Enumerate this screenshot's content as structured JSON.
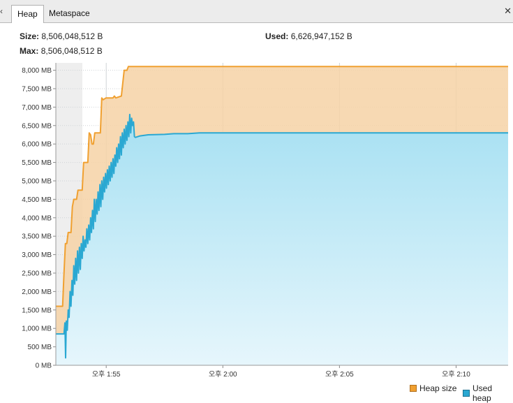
{
  "tabs": [
    {
      "label": "Heap",
      "active": true
    },
    {
      "label": "Metaspace",
      "active": false
    }
  ],
  "info": {
    "size_label": "Size:",
    "size_value": "8,506,048,512 B",
    "max_label": "Max:",
    "max_value": "8,506,048,512 B",
    "used_label": "Used:",
    "used_value": "6,626,947,152 B"
  },
  "colors": {
    "heap_line": "#f0a030",
    "heap_fill": "#f6d2a6",
    "used_line": "#2aa8d2",
    "used_fill_top": "#a6e0f2",
    "used_fill_bottom": "#e6f6fc",
    "old_area": "#eeeeee"
  },
  "chart_data": {
    "type": "area",
    "title": "",
    "xlabel": "",
    "ylabel": "",
    "ylim": [
      0,
      8200
    ],
    "y_ticks": [
      0,
      500,
      1000,
      1500,
      2000,
      2500,
      3000,
      3500,
      4000,
      4500,
      5000,
      5500,
      6000,
      6500,
      7000,
      7500,
      8000
    ],
    "y_tick_labels": [
      "0 MB",
      "500 MB",
      "1,000 MB",
      "1,500 MB",
      "2,000 MB",
      "2,500 MB",
      "3,000 MB",
      "3,500 MB",
      "4,000 MB",
      "4,500 MB",
      "5,000 MB",
      "5,500 MB",
      "6,000 MB",
      "6,500 MB",
      "7,000 MB",
      "7,500 MB",
      "8,000 MB"
    ],
    "x_range_min": [
      1.84,
      21.23
    ],
    "x_ticks": [
      {
        "t": 4.0,
        "label": "오후 1:55"
      },
      {
        "t": 9.0,
        "label": "오후 2:00"
      },
      {
        "t": 14.0,
        "label": "오후 2:05"
      },
      {
        "t": 19.0,
        "label": "오후 2:10"
      }
    ],
    "shaded_until": 2.98,
    "legend_position": "bottom-right",
    "series": [
      {
        "name": "Heap size",
        "points": [
          [
            1.84,
            1600
          ],
          [
            2.13,
            1600
          ],
          [
            2.19,
            2500
          ],
          [
            2.25,
            3300
          ],
          [
            2.31,
            3300
          ],
          [
            2.37,
            3600
          ],
          [
            2.49,
            3600
          ],
          [
            2.55,
            4300
          ],
          [
            2.61,
            4500
          ],
          [
            2.73,
            4500
          ],
          [
            2.79,
            4750
          ],
          [
            2.97,
            4750
          ],
          [
            3.03,
            5500
          ],
          [
            3.21,
            5500
          ],
          [
            3.27,
            6300
          ],
          [
            3.33,
            6250
          ],
          [
            3.39,
            6000
          ],
          [
            3.45,
            6000
          ],
          [
            3.51,
            6300
          ],
          [
            3.75,
            6300
          ],
          [
            3.81,
            7250
          ],
          [
            3.87,
            7200
          ],
          [
            3.99,
            7250
          ],
          [
            4.29,
            7250
          ],
          [
            4.35,
            7300
          ],
          [
            4.41,
            7250
          ],
          [
            4.65,
            7300
          ],
          [
            4.77,
            8000
          ],
          [
            4.89,
            8000
          ],
          [
            4.95,
            8100
          ],
          [
            5.19,
            8100
          ],
          [
            21.23,
            8100
          ]
        ]
      },
      {
        "name": "Used heap",
        "points": [
          [
            1.84,
            850
          ],
          [
            2.19,
            850
          ],
          [
            2.23,
            1150
          ],
          [
            2.26,
            200
          ],
          [
            2.29,
            1200
          ],
          [
            2.33,
            950
          ],
          [
            2.37,
            1500
          ],
          [
            2.41,
            1300
          ],
          [
            2.45,
            2000
          ],
          [
            2.49,
            1600
          ],
          [
            2.53,
            2300
          ],
          [
            2.57,
            1900
          ],
          [
            2.61,
            2700
          ],
          [
            2.65,
            2200
          ],
          [
            2.69,
            2900
          ],
          [
            2.73,
            2300
          ],
          [
            2.77,
            3100
          ],
          [
            2.81,
            2500
          ],
          [
            2.85,
            3200
          ],
          [
            2.89,
            2600
          ],
          [
            2.93,
            3300
          ],
          [
            2.97,
            2900
          ],
          [
            3.01,
            3500
          ],
          [
            3.05,
            3100
          ],
          [
            3.09,
            3400
          ],
          [
            3.13,
            3200
          ],
          [
            3.17,
            3700
          ],
          [
            3.21,
            3300
          ],
          [
            3.25,
            3800
          ],
          [
            3.29,
            3400
          ],
          [
            3.33,
            4000
          ],
          [
            3.37,
            3600
          ],
          [
            3.41,
            4200
          ],
          [
            3.45,
            3700
          ],
          [
            3.49,
            4500
          ],
          [
            3.53,
            3900
          ],
          [
            3.57,
            4500
          ],
          [
            3.61,
            4100
          ],
          [
            3.65,
            4700
          ],
          [
            3.69,
            4200
          ],
          [
            3.73,
            4900
          ],
          [
            3.77,
            4300
          ],
          [
            3.81,
            5000
          ],
          [
            3.85,
            4500
          ],
          [
            3.89,
            5100
          ],
          [
            3.93,
            4700
          ],
          [
            3.97,
            5200
          ],
          [
            4.01,
            4800
          ],
          [
            4.05,
            5300
          ],
          [
            4.09,
            4900
          ],
          [
            4.13,
            5400
          ],
          [
            4.17,
            5000
          ],
          [
            4.21,
            5500
          ],
          [
            4.25,
            5100
          ],
          [
            4.29,
            5600
          ],
          [
            4.33,
            5200
          ],
          [
            4.37,
            5700
          ],
          [
            4.41,
            5400
          ],
          [
            4.45,
            5900
          ],
          [
            4.49,
            5500
          ],
          [
            4.53,
            6000
          ],
          [
            4.57,
            5600
          ],
          [
            4.61,
            6200
          ],
          [
            4.65,
            5700
          ],
          [
            4.69,
            6300
          ],
          [
            4.73,
            5900
          ],
          [
            4.77,
            6400
          ],
          [
            4.81,
            6000
          ],
          [
            4.85,
            6500
          ],
          [
            4.89,
            6100
          ],
          [
            4.93,
            6600
          ],
          [
            4.97,
            6200
          ],
          [
            5.01,
            6800
          ],
          [
            5.05,
            6300
          ],
          [
            5.09,
            6700
          ],
          [
            5.13,
            6500
          ],
          [
            5.17,
            6600
          ],
          [
            5.21,
            6200
          ],
          [
            5.25,
            6180
          ],
          [
            5.45,
            6220
          ],
          [
            5.8,
            6250
          ],
          [
            6.5,
            6260
          ],
          [
            6.9,
            6280
          ],
          [
            7.5,
            6280
          ],
          [
            8.0,
            6300
          ],
          [
            21.23,
            6300
          ]
        ]
      }
    ]
  }
}
